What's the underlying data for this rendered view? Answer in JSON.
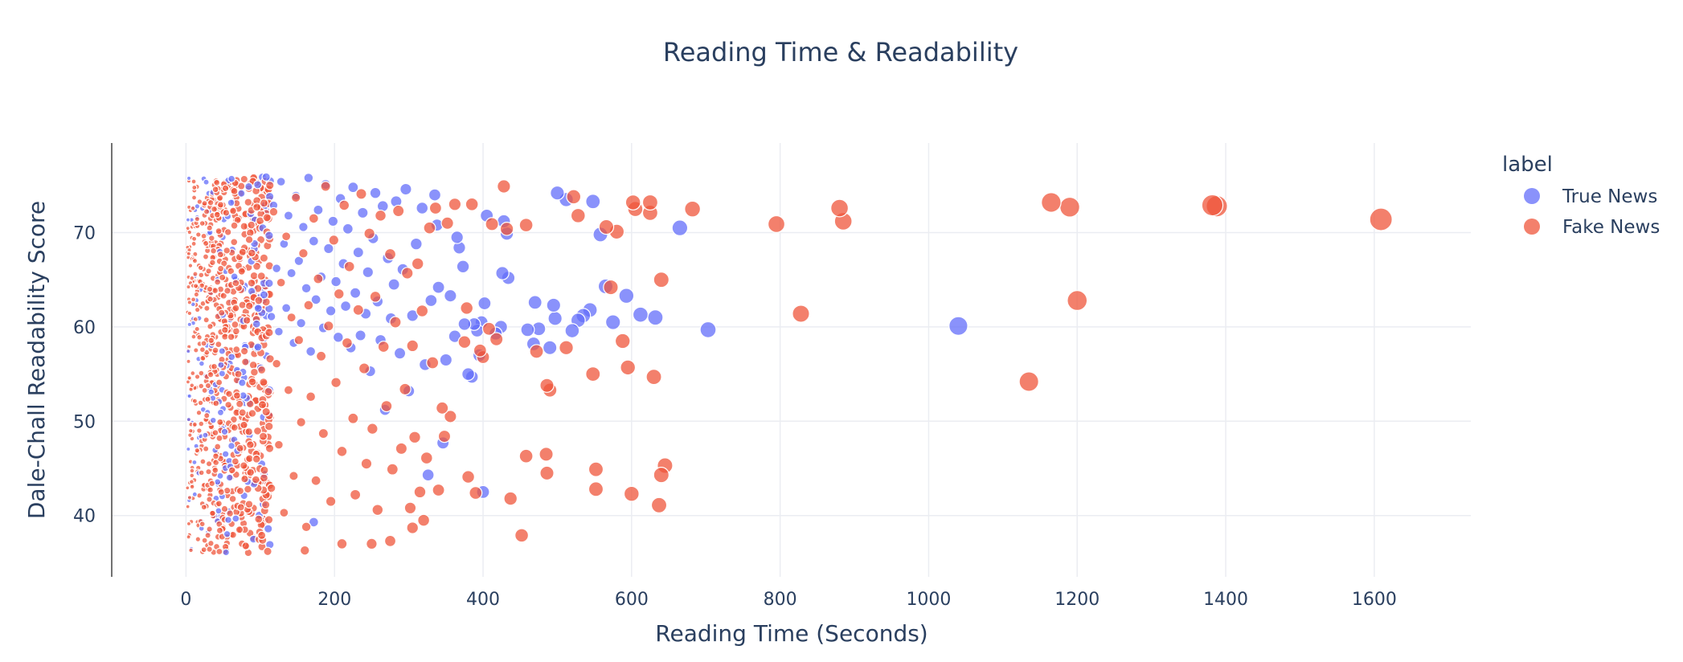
{
  "chart_data": {
    "type": "scatter",
    "title": "Reading Time & Readability",
    "xlabel": "Reading Time (Seconds)",
    "ylabel": "Dale-Chall Readability Score",
    "xlim": [
      -100,
      1730
    ],
    "ylim": [
      33.5,
      79.5
    ],
    "x_ticks": [
      0,
      200,
      400,
      600,
      800,
      1000,
      1200,
      1400,
      1600
    ],
    "y_ticks": [
      40,
      50,
      60,
      70
    ],
    "grid": true,
    "legend": {
      "title": "label",
      "position": "right"
    },
    "size_encodes": "x",
    "series": [
      {
        "name": "True News",
        "color": "#636efa",
        "opacity": 0.75,
        "points": [
          [
            1040,
            60.1
          ],
          [
            665,
            70.5
          ],
          [
            703,
            59.7
          ],
          [
            632,
            61.0
          ],
          [
            612,
            61.3
          ],
          [
            593,
            63.3
          ],
          [
            575,
            60.5
          ],
          [
            565,
            64.3
          ],
          [
            558,
            69.8
          ],
          [
            548,
            73.3
          ],
          [
            544,
            61.8
          ],
          [
            535,
            61.2
          ],
          [
            528,
            60.7
          ],
          [
            520,
            59.6
          ],
          [
            512,
            73.5
          ],
          [
            500,
            74.2
          ],
          [
            497,
            60.9
          ],
          [
            495,
            62.3
          ],
          [
            490,
            57.8
          ],
          [
            475,
            59.8
          ],
          [
            470,
            62.6
          ],
          [
            468,
            58.2
          ],
          [
            460,
            59.7
          ],
          [
            434,
            65.2
          ],
          [
            432,
            69.9
          ],
          [
            428,
            71.2
          ],
          [
            426,
            65.7
          ],
          [
            424,
            60.0
          ],
          [
            417,
            59.3
          ],
          [
            405,
            71.8
          ],
          [
            402,
            62.5
          ],
          [
            398,
            60.5
          ],
          [
            395,
            57.0
          ],
          [
            392,
            59.6
          ],
          [
            388,
            60.3
          ],
          [
            385,
            54.7
          ],
          [
            380,
            55.0
          ],
          [
            375,
            60.3
          ],
          [
            373,
            66.4
          ],
          [
            368,
            68.4
          ],
          [
            365,
            69.5
          ],
          [
            362,
            59.0
          ],
          [
            356,
            63.3
          ],
          [
            350,
            56.5
          ],
          [
            346,
            47.7
          ],
          [
            340,
            64.2
          ],
          [
            338,
            70.8
          ],
          [
            335,
            74.0
          ],
          [
            330,
            62.8
          ],
          [
            326,
            44.3
          ],
          [
            322,
            56.0
          ],
          [
            318,
            72.6
          ],
          [
            310,
            68.8
          ],
          [
            305,
            61.2
          ],
          [
            300,
            53.2
          ],
          [
            296,
            74.6
          ],
          [
            292,
            66.1
          ],
          [
            288,
            57.2
          ],
          [
            283,
            73.3
          ],
          [
            280,
            64.5
          ],
          [
            276,
            60.9
          ],
          [
            272,
            67.3
          ],
          [
            268,
            51.2
          ],
          [
            265,
            72.8
          ],
          [
            262,
            58.6
          ],
          [
            258,
            62.7
          ],
          [
            255,
            74.2
          ],
          [
            252,
            69.4
          ],
          [
            248,
            55.3
          ],
          [
            245,
            65.8
          ],
          [
            242,
            61.4
          ],
          [
            238,
            72.1
          ],
          [
            235,
            59.1
          ],
          [
            232,
            67.9
          ],
          [
            228,
            63.6
          ],
          [
            225,
            74.8
          ],
          [
            222,
            57.8
          ],
          [
            218,
            70.4
          ],
          [
            215,
            62.2
          ],
          [
            212,
            66.7
          ],
          [
            208,
            73.6
          ],
          [
            205,
            58.9
          ],
          [
            202,
            64.8
          ],
          [
            198,
            71.2
          ],
          [
            195,
            61.7
          ],
          [
            192,
            68.3
          ],
          [
            188,
            75.1
          ],
          [
            185,
            59.9
          ],
          [
            182,
            65.3
          ],
          [
            178,
            72.4
          ],
          [
            175,
            62.9
          ],
          [
            172,
            69.1
          ],
          [
            168,
            57.4
          ],
          [
            165,
            75.8
          ],
          [
            162,
            64.1
          ],
          [
            158,
            70.6
          ],
          [
            155,
            60.4
          ],
          [
            152,
            67.0
          ],
          [
            148,
            73.9
          ],
          [
            145,
            58.3
          ],
          [
            142,
            65.7
          ],
          [
            138,
            71.8
          ],
          [
            135,
            62.0
          ],
          [
            132,
            68.8
          ],
          [
            128,
            75.4
          ],
          [
            125,
            59.5
          ],
          [
            122,
            66.2
          ],
          [
            118,
            72.9
          ],
          [
            115,
            61.1
          ],
          [
            112,
            69.7
          ],
          [
            108,
            75.9
          ],
          [
            105,
            63.4
          ],
          [
            400,
            42.5
          ],
          [
            172,
            39.3
          ]
        ]
      },
      {
        "name": "Fake News",
        "color": "#EF553B",
        "opacity": 0.75,
        "points": [
          [
            1609,
            71.4
          ],
          [
            1388,
            72.8
          ],
          [
            1382,
            72.9
          ],
          [
            1190,
            72.7
          ],
          [
            1165,
            73.2
          ],
          [
            1200,
            62.8
          ],
          [
            1135,
            54.2
          ],
          [
            885,
            71.2
          ],
          [
            880,
            72.6
          ],
          [
            828,
            61.4
          ],
          [
            795,
            70.9
          ],
          [
            682,
            72.5
          ],
          [
            640,
            65.0
          ],
          [
            637,
            41.1
          ],
          [
            645,
            45.3
          ],
          [
            640,
            44.3
          ],
          [
            630,
            54.7
          ],
          [
            625,
            72.1
          ],
          [
            625,
            73.2
          ],
          [
            605,
            72.5
          ],
          [
            602,
            73.2
          ],
          [
            600,
            42.3
          ],
          [
            595,
            55.7
          ],
          [
            588,
            58.5
          ],
          [
            580,
            70.1
          ],
          [
            572,
            64.2
          ],
          [
            566,
            70.6
          ],
          [
            552,
            42.8
          ],
          [
            552,
            44.9
          ],
          [
            548,
            55.0
          ],
          [
            528,
            71.8
          ],
          [
            522,
            73.8
          ],
          [
            512,
            57.8
          ],
          [
            490,
            53.3
          ],
          [
            486,
            53.8
          ],
          [
            486,
            44.5
          ],
          [
            485,
            46.5
          ],
          [
            472,
            57.4
          ],
          [
            458,
            46.3
          ],
          [
            458,
            70.8
          ],
          [
            452,
            37.9
          ],
          [
            437,
            41.8
          ],
          [
            432,
            70.4
          ],
          [
            428,
            74.9
          ],
          [
            418,
            58.7
          ],
          [
            412,
            70.9
          ],
          [
            408,
            59.8
          ],
          [
            400,
            56.8
          ],
          [
            396,
            57.5
          ],
          [
            390,
            42.4
          ],
          [
            385,
            73.0
          ],
          [
            380,
            44.1
          ],
          [
            378,
            62.0
          ],
          [
            375,
            58.4
          ],
          [
            362,
            73.0
          ],
          [
            356,
            50.5
          ],
          [
            352,
            71.0
          ],
          [
            348,
            48.4
          ],
          [
            345,
            51.4
          ],
          [
            340,
            42.7
          ],
          [
            336,
            72.6
          ],
          [
            332,
            56.2
          ],
          [
            328,
            70.5
          ],
          [
            324,
            46.1
          ],
          [
            320,
            39.5
          ],
          [
            318,
            61.7
          ],
          [
            315,
            42.5
          ],
          [
            312,
            66.7
          ],
          [
            308,
            48.3
          ],
          [
            305,
            58.0
          ],
          [
            302,
            40.8
          ],
          [
            298,
            65.7
          ],
          [
            295,
            53.4
          ],
          [
            290,
            47.1
          ],
          [
            286,
            72.3
          ],
          [
            282,
            60.5
          ],
          [
            278,
            44.9
          ],
          [
            275,
            67.7
          ],
          [
            270,
            51.6
          ],
          [
            266,
            57.9
          ],
          [
            262,
            71.8
          ],
          [
            258,
            40.6
          ],
          [
            255,
            63.2
          ],
          [
            251,
            49.2
          ],
          [
            247,
            69.9
          ],
          [
            243,
            45.5
          ],
          [
            240,
            55.6
          ],
          [
            236,
            74.1
          ],
          [
            232,
            61.8
          ],
          [
            228,
            42.2
          ],
          [
            225,
            50.3
          ],
          [
            220,
            66.4
          ],
          [
            217,
            58.3
          ],
          [
            213,
            72.9
          ],
          [
            210,
            46.8
          ],
          [
            206,
            63.5
          ],
          [
            202,
            54.1
          ],
          [
            199,
            69.2
          ],
          [
            195,
            41.5
          ],
          [
            192,
            60.1
          ],
          [
            188,
            74.9
          ],
          [
            185,
            48.7
          ],
          [
            182,
            56.9
          ],
          [
            178,
            65.1
          ],
          [
            175,
            43.7
          ],
          [
            172,
            71.5
          ],
          [
            168,
            52.6
          ],
          [
            165,
            62.3
          ],
          [
            162,
            38.8
          ],
          [
            158,
            67.8
          ],
          [
            155,
            49.9
          ],
          [
            152,
            58.6
          ],
          [
            148,
            73.7
          ],
          [
            145,
            44.2
          ],
          [
            142,
            61.0
          ],
          [
            138,
            53.3
          ],
          [
            135,
            69.6
          ],
          [
            132,
            40.3
          ],
          [
            128,
            64.7
          ],
          [
            125,
            47.5
          ],
          [
            122,
            56.1
          ],
          [
            118,
            72.2
          ],
          [
            115,
            42.9
          ],
          [
            112,
            59.4
          ],
          [
            108,
            51.0
          ],
          [
            105,
            67.3
          ],
          [
            102,
            37.9
          ],
          [
            98,
            62.8
          ],
          [
            95,
            46.0
          ],
          [
            92,
            55.2
          ],
          [
            88,
            70.8
          ],
          [
            85,
            41.2
          ],
          [
            82,
            60.7
          ],
          [
            78,
            49.6
          ],
          [
            75,
            65.9
          ],
          [
            72,
            38.5
          ],
          [
            68,
            57.6
          ],
          [
            65,
            74.4
          ],
          [
            62,
            44.8
          ],
          [
            58,
            52.9
          ],
          [
            55,
            68.1
          ],
          [
            52,
            40.7
          ],
          [
            48,
            61.5
          ],
          [
            45,
            48.2
          ],
          [
            42,
            71.9
          ],
          [
            38,
            55.8
          ],
          [
            35,
            43.4
          ],
          [
            32,
            64.0
          ],
          [
            28,
            50.6
          ],
          [
            25,
            73.1
          ],
          [
            22,
            39.1
          ],
          [
            18,
            58.9
          ],
          [
            15,
            46.9
          ],
          [
            12,
            67.0
          ],
          [
            8,
            53.8
          ],
          [
            5,
            41.9
          ],
          [
            305,
            38.7
          ],
          [
            275,
            37.3
          ],
          [
            250,
            37.0
          ],
          [
            210,
            37.0
          ],
          [
            160,
            36.3
          ],
          [
            110,
            36.2
          ]
        ]
      }
    ]
  }
}
